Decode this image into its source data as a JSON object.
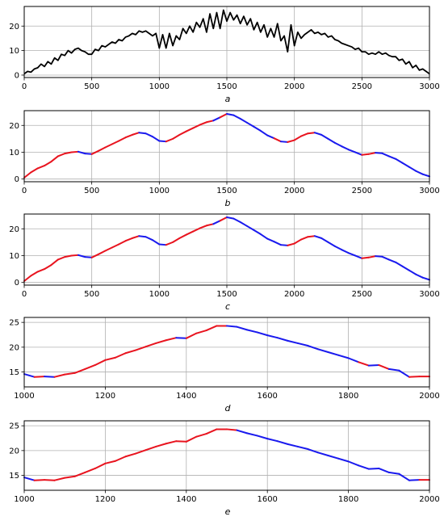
{
  "colors": {
    "black": "#000000",
    "red": "#e8141f",
    "blue": "#1a1aee",
    "grid": "#b0b0b0"
  },
  "chart_data": [
    {
      "type": "line",
      "panel_label": "a",
      "grid": true,
      "xlim": [
        0,
        3000
      ],
      "ylim": [
        -1,
        28
      ],
      "xticks": [
        0,
        500,
        1000,
        1500,
        2000,
        2500,
        3000
      ],
      "yticks": [
        0,
        10,
        20
      ],
      "series": [
        {
          "color": "#000000",
          "x": [
            0,
            25,
            50,
            75,
            100,
            125,
            150,
            175,
            200,
            225,
            250,
            275,
            300,
            325,
            350,
            375,
            400,
            425,
            450,
            475,
            500,
            525,
            550,
            575,
            600,
            625,
            650,
            675,
            700,
            725,
            750,
            775,
            800,
            825,
            850,
            875,
            900,
            925,
            950,
            975,
            1000,
            1025,
            1050,
            1075,
            1100,
            1125,
            1150,
            1175,
            1200,
            1225,
            1250,
            1275,
            1300,
            1325,
            1350,
            1375,
            1400,
            1425,
            1450,
            1475,
            1500,
            1525,
            1550,
            1575,
            1600,
            1625,
            1650,
            1675,
            1700,
            1725,
            1750,
            1775,
            1800,
            1825,
            1850,
            1875,
            1900,
            1925,
            1950,
            1975,
            2000,
            2025,
            2050,
            2075,
            2100,
            2125,
            2150,
            2175,
            2200,
            2225,
            2250,
            2275,
            2300,
            2325,
            2350,
            2375,
            2400,
            2425,
            2450,
            2475,
            2500,
            2525,
            2550,
            2575,
            2600,
            2625,
            2650,
            2675,
            2700,
            2725,
            2750,
            2775,
            2800,
            2825,
            2850,
            2875,
            2900,
            2925,
            2950,
            2975,
            3000
          ],
          "y": [
            0.5,
            1.5,
            1.2,
            2.5,
            3.0,
            4.5,
            3.5,
            5.5,
            4.5,
            7.0,
            6.0,
            8.5,
            8.0,
            10.0,
            9.0,
            10.5,
            11.0,
            10.0,
            9.5,
            8.5,
            8.5,
            10.5,
            10.0,
            12.0,
            11.5,
            12.5,
            13.5,
            13.0,
            14.5,
            14.0,
            15.5,
            16.0,
            17.0,
            16.5,
            18.0,
            17.5,
            18.0,
            17.0,
            16.0,
            17.0,
            11.0,
            16.5,
            11.0,
            17.0,
            12.0,
            16.0,
            14.5,
            19.0,
            17.0,
            20.0,
            17.5,
            21.5,
            19.5,
            23.0,
            17.5,
            25.0,
            19.0,
            25.5,
            19.0,
            26.5,
            22.0,
            25.5,
            22.5,
            24.5,
            21.0,
            24.0,
            20.5,
            23.0,
            18.5,
            21.5,
            17.5,
            20.5,
            15.5,
            19.0,
            15.5,
            21.0,
            14.0,
            16.0,
            9.5,
            20.5,
            12.0,
            17.5,
            15.0,
            16.5,
            17.5,
            18.5,
            17.0,
            17.5,
            16.5,
            17.0,
            15.5,
            16.0,
            14.5,
            14.0,
            13.0,
            12.5,
            12.0,
            11.5,
            10.5,
            11.0,
            9.5,
            9.5,
            8.5,
            9.0,
            8.5,
            9.5,
            8.5,
            9.0,
            8.0,
            7.5,
            7.5,
            6.0,
            6.5,
            4.5,
            5.5,
            3.0,
            4.0,
            2.0,
            2.5,
            1.5,
            0.5
          ]
        }
      ]
    },
    {
      "type": "line",
      "panel_label": "b",
      "grid": true,
      "xlim": [
        0,
        3000
      ],
      "ylim": [
        -1,
        25.5
      ],
      "xticks": [
        0,
        500,
        1000,
        1500,
        2000,
        2500,
        3000
      ],
      "yticks": [
        0,
        10,
        20
      ],
      "x": [
        0,
        50,
        100,
        150,
        200,
        250,
        300,
        350,
        400,
        450,
        500,
        550,
        600,
        650,
        700,
        750,
        800,
        850,
        900,
        950,
        1000,
        1050,
        1100,
        1150,
        1200,
        1250,
        1300,
        1350,
        1400,
        1450,
        1500,
        1550,
        1600,
        1650,
        1700,
        1750,
        1800,
        1850,
        1900,
        1950,
        2000,
        2050,
        2100,
        2150,
        2200,
        2250,
        2300,
        2350,
        2400,
        2450,
        2500,
        2550,
        2600,
        2650,
        2700,
        2750,
        2800,
        2850,
        2900,
        2950,
        3000
      ],
      "y": [
        0.5,
        2.5,
        4.0,
        5.0,
        6.5,
        8.5,
        9.5,
        10.0,
        10.2,
        9.5,
        9.3,
        10.5,
        11.8,
        13.0,
        14.2,
        15.5,
        16.5,
        17.3,
        17.0,
        15.8,
        14.2,
        14.0,
        15.0,
        16.5,
        17.8,
        19.0,
        20.2,
        21.2,
        21.8,
        23.0,
        24.3,
        23.8,
        22.5,
        21.0,
        19.5,
        18.0,
        16.3,
        15.2,
        14.0,
        13.8,
        14.5,
        16.0,
        17.0,
        17.3,
        16.5,
        15.0,
        13.5,
        12.2,
        11.0,
        10.0,
        9.0,
        9.3,
        9.8,
        9.6,
        8.5,
        7.5,
        6.0,
        4.5,
        3.0,
        1.8,
        1.0
      ],
      "colors": [
        "red",
        "red",
        "red",
        "red",
        "red",
        "red",
        "red",
        "red",
        "blue",
        "blue",
        "red",
        "red",
        "red",
        "red",
        "red",
        "red",
        "red",
        "blue",
        "blue",
        "blue",
        "blue",
        "red",
        "red",
        "red",
        "red",
        "red",
        "red",
        "red",
        "blue",
        "red",
        "blue",
        "blue",
        "blue",
        "blue",
        "blue",
        "blue",
        "blue",
        "red",
        "blue",
        "red",
        "red",
        "red",
        "red",
        "blue",
        "blue",
        "blue",
        "blue",
        "blue",
        "blue",
        "blue",
        "red",
        "red",
        "blue",
        "blue",
        "blue",
        "blue",
        "blue",
        "blue",
        "blue",
        "blue",
        "blue"
      ]
    },
    {
      "type": "line",
      "panel_label": "c",
      "grid": true,
      "xlim": [
        0,
        3000
      ],
      "ylim": [
        -1,
        25.5
      ],
      "xticks": [
        0,
        500,
        1000,
        1500,
        2000,
        2500,
        3000
      ],
      "yticks": [
        0,
        10,
        20
      ],
      "x": [
        0,
        50,
        100,
        150,
        200,
        250,
        300,
        350,
        400,
        450,
        500,
        550,
        600,
        650,
        700,
        750,
        800,
        850,
        900,
        950,
        1000,
        1050,
        1100,
        1150,
        1200,
        1250,
        1300,
        1350,
        1400,
        1450,
        1500,
        1550,
        1600,
        1650,
        1700,
        1750,
        1800,
        1850,
        1900,
        1950,
        2000,
        2050,
        2100,
        2150,
        2200,
        2250,
        2300,
        2350,
        2400,
        2450,
        2500,
        2550,
        2600,
        2650,
        2700,
        2750,
        2800,
        2850,
        2900,
        2950,
        3000
      ],
      "y": [
        0.5,
        2.5,
        4.0,
        5.0,
        6.5,
        8.5,
        9.5,
        10.0,
        10.2,
        9.5,
        9.3,
        10.5,
        11.8,
        13.0,
        14.2,
        15.5,
        16.5,
        17.3,
        17.0,
        15.8,
        14.2,
        14.0,
        15.0,
        16.5,
        17.8,
        19.0,
        20.2,
        21.2,
        21.8,
        23.0,
        24.3,
        23.8,
        22.5,
        21.0,
        19.5,
        18.0,
        16.3,
        15.2,
        14.0,
        13.8,
        14.5,
        16.0,
        17.0,
        17.3,
        16.5,
        15.0,
        13.5,
        12.2,
        11.0,
        10.0,
        9.0,
        9.3,
        9.8,
        9.6,
        8.5,
        7.5,
        6.0,
        4.5,
        3.0,
        1.8,
        1.0
      ],
      "colors": [
        "red",
        "red",
        "red",
        "red",
        "red",
        "red",
        "red",
        "red",
        "blue",
        "blue",
        "red",
        "red",
        "red",
        "red",
        "red",
        "red",
        "red",
        "blue",
        "blue",
        "blue",
        "blue",
        "red",
        "red",
        "red",
        "red",
        "red",
        "red",
        "red",
        "blue",
        "red",
        "blue",
        "blue",
        "blue",
        "blue",
        "blue",
        "blue",
        "blue",
        "blue",
        "blue",
        "red",
        "red",
        "red",
        "red",
        "blue",
        "blue",
        "blue",
        "blue",
        "blue",
        "blue",
        "blue",
        "red",
        "red",
        "blue",
        "blue",
        "blue",
        "blue",
        "blue",
        "blue",
        "blue",
        "blue",
        "blue"
      ]
    },
    {
      "type": "line",
      "panel_label": "d",
      "grid": true,
      "xlim": [
        1000,
        2000
      ],
      "ylim": [
        12,
        26
      ],
      "xticks": [
        1000,
        1200,
        1400,
        1600,
        1800,
        2000
      ],
      "yticks": [
        15,
        20,
        25
      ],
      "x": [
        1000,
        1025,
        1050,
        1075,
        1100,
        1125,
        1150,
        1175,
        1200,
        1225,
        1250,
        1275,
        1300,
        1325,
        1350,
        1375,
        1400,
        1425,
        1450,
        1475,
        1500,
        1525,
        1550,
        1575,
        1600,
        1625,
        1650,
        1675,
        1700,
        1725,
        1750,
        1775,
        1800,
        1825,
        1850,
        1875,
        1900,
        1925,
        1950,
        1975,
        2000
      ],
      "y": [
        14.6,
        14.0,
        14.1,
        14.0,
        14.5,
        14.8,
        15.6,
        16.4,
        17.4,
        17.9,
        18.8,
        19.4,
        20.1,
        20.8,
        21.4,
        21.9,
        21.8,
        22.8,
        23.4,
        24.3,
        24.3,
        24.1,
        23.5,
        23.0,
        22.4,
        21.9,
        21.3,
        20.8,
        20.3,
        19.6,
        19.0,
        18.4,
        17.8,
        17.0,
        16.3,
        16.4,
        15.6,
        15.3,
        14.0,
        14.1,
        14.1
      ],
      "colors": [
        "blue",
        "red",
        "blue",
        "red",
        "red",
        "red",
        "red",
        "red",
        "red",
        "red",
        "red",
        "red",
        "red",
        "red",
        "red",
        "blue",
        "red",
        "red",
        "red",
        "red",
        "blue",
        "blue",
        "blue",
        "blue",
        "blue",
        "blue",
        "blue",
        "blue",
        "blue",
        "blue",
        "blue",
        "blue",
        "blue",
        "red",
        "blue",
        "red",
        "blue",
        "blue",
        "red",
        "red",
        "blue"
      ]
    },
    {
      "type": "line",
      "panel_label": "e",
      "grid": true,
      "xlim": [
        1000,
        2000
      ],
      "ylim": [
        12,
        26
      ],
      "xticks": [
        1000,
        1200,
        1400,
        1600,
        1800,
        2000
      ],
      "yticks": [
        15,
        20,
        25
      ],
      "x": [
        1000,
        1025,
        1050,
        1075,
        1100,
        1125,
        1150,
        1175,
        1200,
        1225,
        1250,
        1275,
        1300,
        1325,
        1350,
        1375,
        1400,
        1425,
        1450,
        1475,
        1500,
        1525,
        1550,
        1575,
        1600,
        1625,
        1650,
        1675,
        1700,
        1725,
        1750,
        1775,
        1800,
        1825,
        1850,
        1875,
        1900,
        1925,
        1950,
        1975,
        2000
      ],
      "y": [
        14.6,
        14.0,
        14.1,
        14.0,
        14.5,
        14.8,
        15.6,
        16.4,
        17.4,
        17.9,
        18.8,
        19.4,
        20.1,
        20.8,
        21.4,
        21.9,
        21.8,
        22.8,
        23.4,
        24.3,
        24.3,
        24.1,
        23.5,
        23.0,
        22.4,
        21.9,
        21.3,
        20.8,
        20.3,
        19.6,
        19.0,
        18.4,
        17.8,
        17.0,
        16.3,
        16.4,
        15.6,
        15.3,
        14.0,
        14.1,
        14.1
      ],
      "colors": [
        "blue",
        "red",
        "red",
        "red",
        "red",
        "red",
        "red",
        "red",
        "red",
        "red",
        "red",
        "red",
        "red",
        "red",
        "red",
        "red",
        "red",
        "red",
        "red",
        "red",
        "red",
        "blue",
        "blue",
        "blue",
        "blue",
        "blue",
        "blue",
        "blue",
        "blue",
        "blue",
        "blue",
        "blue",
        "blue",
        "blue",
        "blue",
        "blue",
        "blue",
        "blue",
        "blue",
        "red",
        "red"
      ]
    }
  ]
}
